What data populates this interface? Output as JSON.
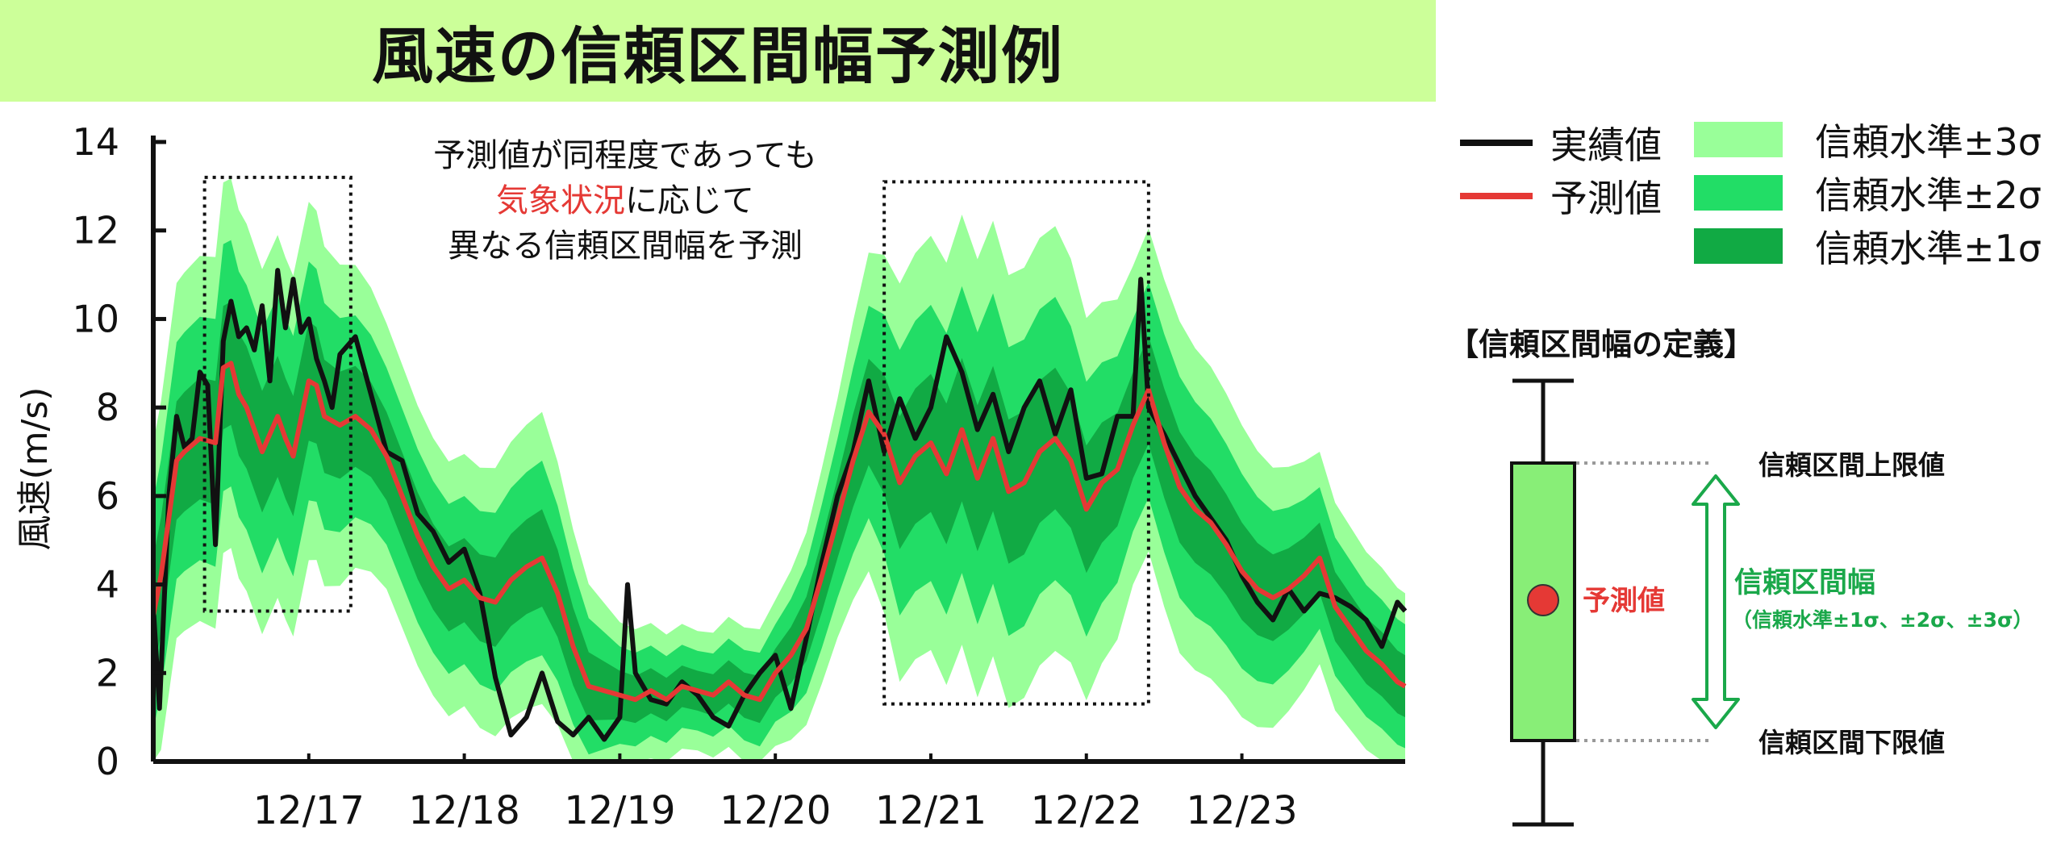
{
  "title": "風速の信頼区間幅予測例",
  "colors": {
    "actual": "#111111",
    "forecast": "#e53935",
    "band3": "#99ff99",
    "band2": "#22dd66",
    "band1": "#11aa44",
    "title_bg": "#ccff99",
    "interval_text": "#1aa84a"
  },
  "annotation": {
    "line1": "予測値が同程度であっても",
    "line2_highlight": "気象状況",
    "line2_rest": "に応じて",
    "line3": "異なる信頼区間幅を予測"
  },
  "legend": {
    "actual": "実績値",
    "forecast": "予測値",
    "band3": "信頼水準±3σ",
    "band2": "信頼水準±2σ",
    "band1": "信頼水準±1σ"
  },
  "definition": {
    "title": "【信頼区間幅の定義】",
    "upper": "信頼区間上限値",
    "lower": "信頼区間下限値",
    "point": "予測値",
    "width_label": "信頼区間幅",
    "width_sub": "（信頼水準±1σ、±2σ、±3σ）"
  },
  "chart_data": {
    "type": "line",
    "title": "",
    "xlabel": "",
    "ylabel": "風速(m/s)",
    "ylim": [
      0,
      14
    ],
    "yticks": [
      0,
      2,
      4,
      6,
      8,
      10,
      12,
      14
    ],
    "xlim": [
      16.0,
      24.05
    ],
    "xticks": [
      {
        "x": 17,
        "label": "12/17"
      },
      {
        "x": 18,
        "label": "12/18"
      },
      {
        "x": 19,
        "label": "12/19"
      },
      {
        "x": 20,
        "label": "12/20"
      },
      {
        "x": 21,
        "label": "12/21"
      },
      {
        "x": 22,
        "label": "12/22"
      },
      {
        "x": 23,
        "label": "12/23"
      }
    ],
    "highlight_boxes": [
      {
        "x0": 16.33,
        "x1": 17.27,
        "y0": 3.4,
        "y1": 13.2
      },
      {
        "x0": 20.7,
        "x1": 22.4,
        "y0": 1.3,
        "y1": 13.1
      }
    ],
    "series": [
      {
        "name": "実績値",
        "x": [
          16.0,
          16.04,
          16.1,
          16.15,
          16.2,
          16.25,
          16.3,
          16.35,
          16.4,
          16.45,
          16.5,
          16.55,
          16.6,
          16.65,
          16.7,
          16.75,
          16.8,
          16.85,
          16.9,
          16.95,
          17.0,
          17.05,
          17.1,
          17.15,
          17.2,
          17.3,
          17.4,
          17.5,
          17.6,
          17.7,
          17.8,
          17.9,
          18.0,
          18.1,
          18.2,
          18.3,
          18.4,
          18.5,
          18.6,
          18.7,
          18.8,
          18.9,
          19.0,
          19.05,
          19.1,
          19.2,
          19.3,
          19.4,
          19.5,
          19.6,
          19.7,
          19.8,
          19.9,
          20.0,
          20.1,
          20.2,
          20.3,
          20.4,
          20.5,
          20.6,
          20.7,
          20.8,
          20.9,
          21.0,
          21.1,
          21.2,
          21.3,
          21.4,
          21.5,
          21.6,
          21.7,
          21.8,
          21.9,
          22.0,
          22.1,
          22.2,
          22.3,
          22.35,
          22.4,
          22.5,
          22.6,
          22.7,
          22.8,
          22.9,
          23.0,
          23.1,
          23.2,
          23.3,
          23.4,
          23.5,
          23.6,
          23.7,
          23.8,
          23.9,
          24.0,
          24.05
        ],
        "values": [
          3.5,
          1.2,
          6.0,
          7.8,
          7.1,
          7.3,
          8.8,
          8.5,
          4.9,
          9.5,
          10.4,
          9.6,
          9.8,
          9.3,
          10.3,
          8.6,
          11.1,
          9.8,
          10.9,
          9.7,
          10.0,
          9.1,
          8.6,
          8.0,
          9.2,
          9.6,
          8.3,
          7.0,
          6.8,
          5.6,
          5.2,
          4.5,
          4.8,
          3.8,
          1.9,
          0.6,
          1.0,
          2.0,
          0.9,
          0.6,
          1.0,
          0.5,
          1.0,
          4.0,
          2.0,
          1.4,
          1.3,
          1.8,
          1.5,
          1.0,
          0.8,
          1.5,
          2.0,
          2.4,
          1.2,
          2.8,
          4.5,
          6.0,
          7.0,
          8.6,
          7.0,
          8.2,
          7.3,
          8.0,
          9.6,
          8.8,
          7.5,
          8.3,
          7.0,
          8.0,
          8.6,
          7.4,
          8.4,
          6.4,
          6.5,
          7.8,
          7.8,
          10.9,
          8.0,
          7.4,
          6.7,
          6.0,
          5.5,
          5.0,
          4.2,
          3.6,
          3.2,
          3.9,
          3.4,
          3.8,
          3.7,
          3.5,
          3.2,
          2.6,
          3.6,
          3.4
        ]
      },
      {
        "name": "予測値",
        "x": [
          16.0,
          16.05,
          16.1,
          16.15,
          16.2,
          16.3,
          16.4,
          16.45,
          16.5,
          16.55,
          16.6,
          16.7,
          16.8,
          16.85,
          16.9,
          17.0,
          17.05,
          17.1,
          17.2,
          17.3,
          17.4,
          17.5,
          17.6,
          17.7,
          17.8,
          17.9,
          18.0,
          18.1,
          18.2,
          18.3,
          18.4,
          18.5,
          18.6,
          18.7,
          18.8,
          18.9,
          19.0,
          19.1,
          19.2,
          19.3,
          19.4,
          19.5,
          19.6,
          19.7,
          19.8,
          19.9,
          20.0,
          20.1,
          20.2,
          20.3,
          20.4,
          20.5,
          20.6,
          20.7,
          20.8,
          20.9,
          21.0,
          21.1,
          21.2,
          21.3,
          21.4,
          21.5,
          21.6,
          21.7,
          21.8,
          21.9,
          22.0,
          22.1,
          22.2,
          22.3,
          22.4,
          22.5,
          22.6,
          22.7,
          22.8,
          22.9,
          23.0,
          23.1,
          23.2,
          23.3,
          23.4,
          23.5,
          23.6,
          23.7,
          23.8,
          23.9,
          24.0,
          24.05
        ],
        "values": [
          3.3,
          4.2,
          5.5,
          6.8,
          7.0,
          7.3,
          7.2,
          8.9,
          9.0,
          8.3,
          8.0,
          7.0,
          7.8,
          7.3,
          6.9,
          8.6,
          8.5,
          7.8,
          7.6,
          7.8,
          7.5,
          6.9,
          6.0,
          5.1,
          4.4,
          3.9,
          4.1,
          3.7,
          3.6,
          4.1,
          4.4,
          4.6,
          3.8,
          2.6,
          1.7,
          1.6,
          1.5,
          1.4,
          1.6,
          1.4,
          1.7,
          1.6,
          1.5,
          1.8,
          1.5,
          1.4,
          2.0,
          2.4,
          3.0,
          4.2,
          5.5,
          6.8,
          7.9,
          7.4,
          6.3,
          6.9,
          7.2,
          6.5,
          7.5,
          6.4,
          7.3,
          6.1,
          6.3,
          7.0,
          7.3,
          6.8,
          5.7,
          6.3,
          6.6,
          7.6,
          8.4,
          7.2,
          6.2,
          5.7,
          5.4,
          4.9,
          4.3,
          3.9,
          3.7,
          3.9,
          4.2,
          4.6,
          3.5,
          3.0,
          2.5,
          2.2,
          1.8,
          1.7
        ]
      }
    ],
    "bands": [
      {
        "name": "信頼水準±3σ",
        "sigma": 3
      },
      {
        "name": "信頼水準±2σ",
        "sigma": 2
      },
      {
        "name": "信頼水準±1σ",
        "sigma": 1
      }
    ],
    "sigma_profile": {
      "x": [
        16.0,
        16.4,
        17.0,
        17.5,
        18.0,
        18.5,
        19.0,
        19.5,
        20.0,
        20.4,
        20.8,
        21.3,
        21.8,
        22.3,
        22.6,
        23.0,
        23.5,
        24.05
      ],
      "values": [
        1.3,
        1.4,
        1.35,
        1.0,
        0.95,
        1.1,
        0.55,
        0.45,
        0.55,
        0.9,
        1.5,
        1.65,
        1.6,
        1.2,
        1.25,
        1.1,
        0.8,
        0.7
      ]
    }
  }
}
